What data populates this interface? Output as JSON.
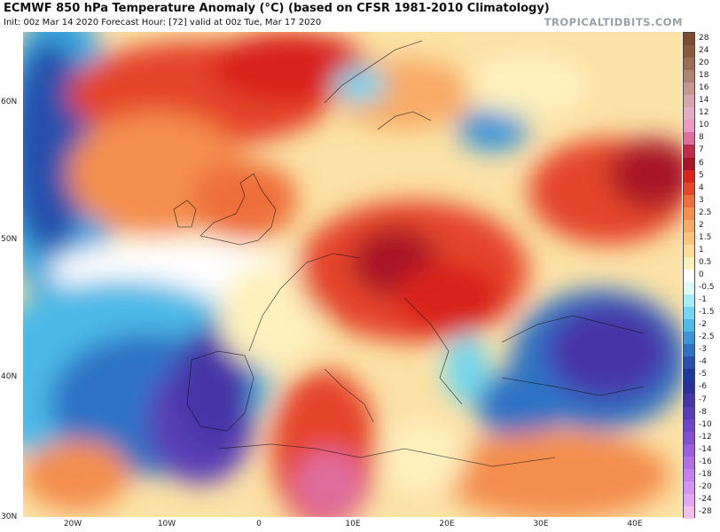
{
  "header": {
    "title": "ECMWF 850 hPa Temperature Anomaly (°C) (based on CFSR 1981-2010 Climatology)",
    "subtitle": "Init: 00z Mar 14 2020   Forecast Hour: [72]   valid at 00z Tue, Mar 17 2020",
    "brand": "TROPICALTIDBITS.COM"
  },
  "map": {
    "lat_labels": [
      "60N",
      "50N",
      "40N",
      "30N"
    ],
    "lon_labels": [
      "20W",
      "10W",
      "0",
      "10E",
      "20E",
      "30E",
      "40E"
    ]
  },
  "colorbar": {
    "labels": [
      "28",
      "24",
      "20",
      "18",
      "16",
      "14",
      "12",
      "10",
      "8",
      "7",
      "6",
      "5",
      "4",
      "3",
      "2.5",
      "2",
      "1.5",
      "1",
      "0.5",
      "0",
      "-0.5",
      "-1",
      "-1.5",
      "-2",
      "-2.5",
      "-3",
      "-4",
      "-5",
      "-6",
      "-7",
      "-8",
      "-10",
      "-12",
      "-14",
      "-16",
      "-18",
      "-20",
      "-24",
      "-28"
    ],
    "colors": [
      "#7b4a33",
      "#8a5a40",
      "#9a6e55",
      "#ad8473",
      "#c29890",
      "#d4a6b0",
      "#e2aec6",
      "#ea98c4",
      "#df6d9e",
      "#c22a4a",
      "#a81426",
      "#d8231e",
      "#e5452a",
      "#ee6e3a",
      "#f48e4e",
      "#f8ab66",
      "#fac67f",
      "#fcdc98",
      "#fef1bd",
      "#ffffff",
      "#dff8f8",
      "#a9ecf2",
      "#72d6ee",
      "#4cb9e6",
      "#3a96d8",
      "#2f72c4",
      "#2650ac",
      "#1f399b",
      "#2b2f9a",
      "#4634a8",
      "#5a3cb6",
      "#6e45c4",
      "#8450d2",
      "#9a5fdc",
      "#b06fe4",
      "#c481ea",
      "#d394ee",
      "#e0a8f0",
      "#f2c0e8"
    ],
    "cell_names": [
      "cbar-28",
      "cbar-24",
      "cbar-20",
      "cbar-18",
      "cbar-16",
      "cbar-14",
      "cbar-12",
      "cbar-10",
      "cbar-8",
      "cbar-7",
      "cbar-6",
      "cbar-5",
      "cbar-4",
      "cbar-3",
      "cbar-2-5",
      "cbar-2",
      "cbar-1-5",
      "cbar-1",
      "cbar-0-5",
      "cbar-0",
      "cbar-neg-0-5",
      "cbar-neg-1",
      "cbar-neg-1-5",
      "cbar-neg-2",
      "cbar-neg-2-5",
      "cbar-neg-3",
      "cbar-neg-4",
      "cbar-neg-5",
      "cbar-neg-6",
      "cbar-neg-7",
      "cbar-neg-8",
      "cbar-neg-10",
      "cbar-neg-12",
      "cbar-neg-14",
      "cbar-neg-16",
      "cbar-neg-18",
      "cbar-neg-20",
      "cbar-neg-24",
      "cbar-neg-28"
    ]
  }
}
